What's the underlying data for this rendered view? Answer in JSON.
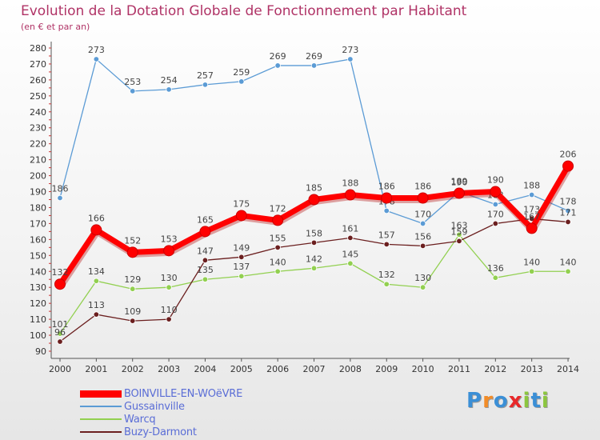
{
  "chart_data": {
    "type": "line",
    "title": "Evolution de la Dotation Globale de Fonctionnement par Habitant",
    "subtitle": "(en € et par an)",
    "categories": [
      "2000",
      "2001",
      "2002",
      "2003",
      "2004",
      "2005",
      "2006",
      "2007",
      "2008",
      "2009",
      "2010",
      "2011",
      "2012",
      "2013",
      "2014"
    ],
    "ylim": [
      90,
      280
    ],
    "yticks": [
      90,
      100,
      110,
      120,
      130,
      140,
      150,
      160,
      170,
      180,
      190,
      200,
      210,
      220,
      230,
      240,
      250,
      260,
      270,
      280
    ],
    "grid": false,
    "series": [
      {
        "name": "Gussainville",
        "color": "#5b9bd5",
        "values": [
          186,
          273,
          253,
          254,
          257,
          259,
          269,
          269,
          273,
          178,
          170,
          190,
          182,
          188,
          178
        ]
      },
      {
        "name": "Warcq",
        "color": "#92d050",
        "values": [
          101,
          134,
          129,
          130,
          135,
          137,
          140,
          142,
          145,
          132,
          130,
          163,
          136,
          140,
          140
        ]
      },
      {
        "name": "Buzy-Darmont",
        "color": "#6b1f1f",
        "values": [
          96,
          113,
          109,
          110,
          147,
          149,
          155,
          158,
          161,
          157,
          156,
          159,
          170,
          173,
          171
        ]
      },
      {
        "name": "BOINVILLE-EN-WOëVRE",
        "color": "#ff0000",
        "values": [
          132,
          166,
          152,
          153,
          165,
          175,
          172,
          185,
          188,
          186,
          186,
          189,
          190,
          167,
          206
        ],
        "bold": true
      }
    ],
    "legend": [
      "BOINVILLE-EN-WOëVRE",
      "Gussainville",
      "Warcq",
      "Buzy-Darmont"
    ],
    "legend_position": "bottom-left"
  },
  "logo": {
    "letters": [
      "P",
      "r",
      "o",
      "x",
      "i",
      "t",
      "i"
    ],
    "colors": [
      "#3b8fd6",
      "#f28c28",
      "#3b8fd6",
      "#e8282a",
      "#8cc63f",
      "#3b8fd6",
      "#8cc63f"
    ]
  }
}
